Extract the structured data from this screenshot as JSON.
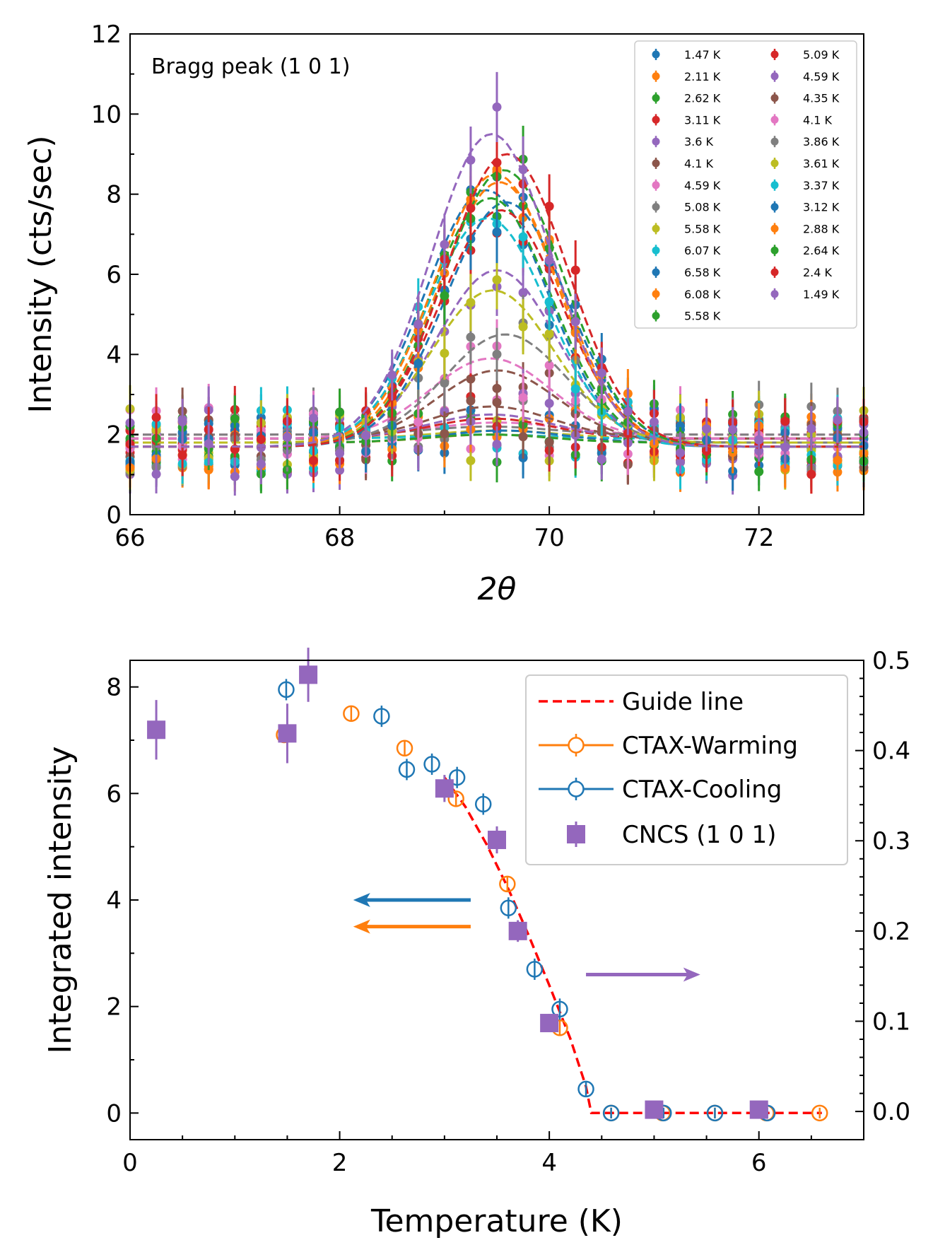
{
  "chart_data": [
    {
      "type": "scatter",
      "title": "",
      "annotation": "Bragg peak (1 0 1)",
      "xlabel": "2θ",
      "ylabel": "Intensity (cts/sec)",
      "xlim": [
        66,
        73
      ],
      "ylim": [
        0,
        12
      ],
      "xticks": [
        "66",
        "68",
        "70",
        "72"
      ],
      "yticks": [
        "0",
        "2",
        "4",
        "6",
        "8",
        "10",
        "12"
      ],
      "legend_position": "top-right",
      "x_points": [
        66.0,
        66.25,
        66.5,
        66.75,
        67.0,
        67.25,
        67.5,
        67.75,
        68.0,
        68.25,
        68.5,
        68.75,
        69.0,
        69.25,
        69.5,
        69.75,
        70.0,
        70.25,
        70.5,
        70.75,
        71.0,
        71.25,
        71.5,
        71.75,
        72.0,
        72.25,
        72.5,
        72.75,
        73.0
      ],
      "peak_center": 69.5,
      "series": [
        {
          "name": "1.47 K",
          "color": "#1f77b4",
          "baseline": 1.7,
          "amplitude": 6.4
        },
        {
          "name": "2.11 K",
          "color": "#ff7f0e",
          "baseline": 1.7,
          "amplitude": 6.6
        },
        {
          "name": "2.62 K",
          "color": "#2ca02c",
          "baseline": 1.7,
          "amplitude": 6.2
        },
        {
          "name": "3.11 K",
          "color": "#d62728",
          "baseline": 1.7,
          "amplitude": 5.9
        },
        {
          "name": "3.6 K",
          "color": "#9467bd",
          "baseline": 1.7,
          "amplitude": 4.4
        },
        {
          "name": "4.1 K",
          "color": "#8c564b",
          "baseline": 1.8,
          "amplitude": 1.8
        },
        {
          "name": "4.59 K",
          "color": "#e377c2",
          "baseline": 2.0,
          "amplitude": 0.3
        },
        {
          "name": "5.08 K",
          "color": "#7f7f7f",
          "baseline": 2.0,
          "amplitude": 0.2
        },
        {
          "name": "5.58 K",
          "color": "#bcbd22",
          "baseline": 1.9,
          "amplitude": 0.2
        },
        {
          "name": "6.07 K",
          "color": "#17becf",
          "baseline": 1.9,
          "amplitude": 0.1
        },
        {
          "name": "6.58 K",
          "color": "#1f77b4",
          "baseline": 1.8,
          "amplitude": 0.3
        },
        {
          "name": "6.08 K",
          "color": "#ff7f0e",
          "baseline": 1.8,
          "amplitude": 0.2
        },
        {
          "name": "5.58 K",
          "color": "#2ca02c",
          "baseline": 1.8,
          "amplitude": 0.2
        },
        {
          "name": "5.09 K",
          "color": "#d62728",
          "baseline": 1.9,
          "amplitude": 0.5
        },
        {
          "name": "4.59 K",
          "color": "#9467bd",
          "baseline": 1.9,
          "amplitude": 0.6
        },
        {
          "name": "4.35 K",
          "color": "#8c564b",
          "baseline": 1.9,
          "amplitude": 0.8
        },
        {
          "name": "4.1 K",
          "color": "#e377c2",
          "baseline": 1.9,
          "amplitude": 2.0
        },
        {
          "name": "3.86 K",
          "color": "#7f7f7f",
          "baseline": 1.8,
          "amplitude": 2.7
        },
        {
          "name": "3.61 K",
          "color": "#bcbd22",
          "baseline": 1.8,
          "amplitude": 3.8
        },
        {
          "name": "3.37 K",
          "color": "#17becf",
          "baseline": 1.7,
          "amplitude": 5.7
        },
        {
          "name": "3.12 K",
          "color": "#1f77b4",
          "baseline": 1.7,
          "amplitude": 6.1
        },
        {
          "name": "2.88 K",
          "color": "#ff7f0e",
          "baseline": 1.7,
          "amplitude": 6.8
        },
        {
          "name": "2.64 K",
          "color": "#2ca02c",
          "baseline": 1.7,
          "amplitude": 6.9
        },
        {
          "name": "2.4 K",
          "color": "#d62728",
          "baseline": 1.7,
          "amplitude": 7.3
        },
        {
          "name": "1.49 K",
          "color": "#9467bd",
          "baseline": 1.7,
          "amplitude": 7.8
        }
      ]
    },
    {
      "type": "scatter",
      "title": "",
      "xlabel": "Temperature (K)",
      "ylabel": "Integrated intensity",
      "xlim": [
        0,
        7
      ],
      "ylim": [
        -0.5,
        8.5
      ],
      "y2lim": [
        -0.03125,
        0.5
      ],
      "xticks": [
        "0",
        "2",
        "4",
        "6"
      ],
      "yticks": [
        "0",
        "2",
        "4",
        "6",
        "8"
      ],
      "y2ticks": [
        "0.0",
        "0.1",
        "0.2",
        "0.3",
        "0.4",
        "0.5"
      ],
      "legend_position": "top-right",
      "legend": [
        "Guide line",
        "CTAX-Warming",
        "CTAX-Cooling",
        "CNCS (1 0 1)"
      ],
      "series": [
        {
          "name": "Guide line",
          "color": "#ff0000",
          "style": "dashed",
          "x": [
            3.0,
            3.2,
            3.4,
            3.6,
            3.8,
            4.0,
            4.2,
            4.35,
            4.4,
            4.45,
            6.6
          ],
          "y": [
            6.3,
            5.75,
            5.05,
            4.25,
            3.35,
            2.4,
            1.4,
            0.5,
            0.0,
            0.0,
            0.0
          ]
        },
        {
          "name": "CTAX-Warming",
          "color": "#ff7f0e",
          "marker": "open-circle",
          "x": [
            1.47,
            2.11,
            2.62,
            3.11,
            3.6,
            4.1,
            4.59,
            5.08,
            5.58,
            6.07,
            6.58
          ],
          "y": [
            7.1,
            7.5,
            6.85,
            5.9,
            4.3,
            1.6,
            0.0,
            0.0,
            0.0,
            0.0,
            0.0
          ],
          "err": [
            0.15,
            0.15,
            0.15,
            0.15,
            0.15,
            0.15,
            0.1,
            0.1,
            0.1,
            0.1,
            0.1
          ]
        },
        {
          "name": "CTAX-Cooling",
          "color": "#1f77b4",
          "marker": "open-circle",
          "x": [
            1.49,
            2.4,
            2.64,
            2.88,
            3.12,
            3.37,
            3.61,
            3.86,
            4.1,
            4.35,
            4.59,
            5.09,
            5.58,
            6.08
          ],
          "y": [
            7.95,
            7.45,
            6.45,
            6.55,
            6.3,
            5.8,
            3.85,
            2.7,
            1.95,
            0.45,
            0.0,
            0.0,
            0.0,
            0.0
          ],
          "err": [
            0.2,
            0.2,
            0.2,
            0.2,
            0.2,
            0.2,
            0.2,
            0.2,
            0.2,
            0.15,
            0.1,
            0.1,
            0.1,
            0.1
          ]
        },
        {
          "name": "CNCS (1 0 1)",
          "color": "#9467bd",
          "marker": "filled-square",
          "axis": "right",
          "x": [
            0.25,
            1.5,
            1.7,
            3.0,
            3.5,
            3.7,
            4.0,
            5.0,
            6.0
          ],
          "y2": [
            0.423,
            0.419,
            0.484,
            0.358,
            0.301,
            0.2,
            0.098,
            0.002,
            0.002
          ],
          "err2": [
            0.033,
            0.033,
            0.03,
            0.015,
            0.015,
            0.012,
            0.01,
            0.005,
            0.005
          ]
        }
      ],
      "arrows": [
        {
          "color": "#1f77b4",
          "direction": "left"
        },
        {
          "color": "#ff7f0e",
          "direction": "left"
        },
        {
          "color": "#9467bd",
          "direction": "right"
        }
      ]
    }
  ]
}
